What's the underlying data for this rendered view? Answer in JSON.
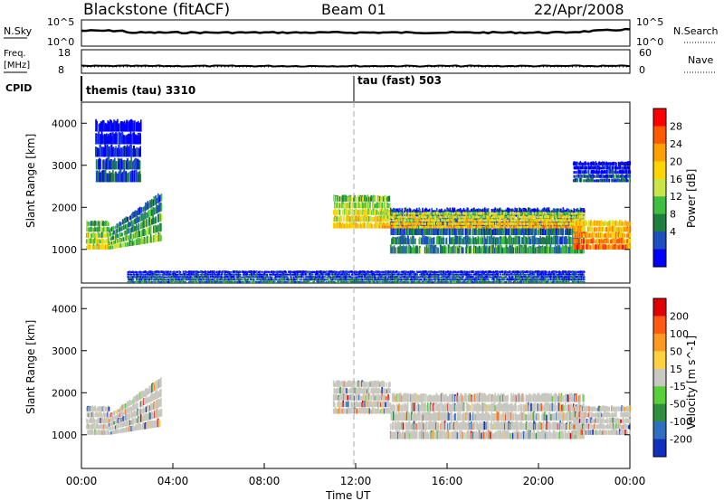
{
  "header": {
    "station": "Blackstone (fitACF)",
    "beam": "Beam 01",
    "date": "22/Apr/2008"
  },
  "top_panels": {
    "nsky_label": "N.Sky",
    "nsky_ticks": [
      "10^5",
      "10^0"
    ],
    "nsearch_label": "N.Search",
    "nsearch_ticks": [
      "10^5",
      "10^0"
    ],
    "freq_label": "Freq.",
    "freq_unit": "[MHz]",
    "freq_ticks": [
      "18",
      "8"
    ],
    "nave_label": "Nave",
    "nave_ticks": [
      "60",
      "0"
    ],
    "cpid_label": "CPID",
    "cpid_modes": [
      {
        "label": "themis (tau) 3310",
        "start_hour": 0.0
      },
      {
        "label": "tau (fast) 503",
        "start_hour": 12.0
      }
    ]
  },
  "colorbar_power": {
    "label": "Power [dB]",
    "ticks": [
      "28",
      "24",
      "20",
      "16",
      "12",
      "8",
      "4"
    ],
    "colors": [
      "#0000ff",
      "#1d4fc0",
      "#1f7f3f",
      "#3fbf3f",
      "#c8e64a",
      "#ffd400",
      "#ff9f00",
      "#ff5a00",
      "#ff0000"
    ]
  },
  "colorbar_velocity": {
    "label": "Velocity [m s^-1]",
    "ticks": [
      "200",
      "100",
      "50",
      "15",
      "-15",
      "-50",
      "-100",
      "-200"
    ],
    "colors": [
      "#1030c0",
      "#2f6fbf",
      "#2f8f3f",
      "#57d13a",
      "#c8c8c0",
      "#ffd040",
      "#ff9a20",
      "#ff5a10",
      "#e00000"
    ]
  },
  "chart_data": [
    {
      "type": "heatmap",
      "title": "Power",
      "xlabel": "Time UT",
      "ylabel": "Slant Range [km]",
      "x_ticks": [
        "00:00",
        "04:00",
        "08:00",
        "12:00",
        "16:00",
        "20:00",
        "00:00"
      ],
      "y_ticks": [
        "4000",
        "3000",
        "2000",
        "1000"
      ],
      "xlim": [
        0,
        24
      ],
      "ylim": [
        200,
        4500
      ],
      "colorbar_range": [
        0,
        32
      ],
      "regions": [
        {
          "t0": 0.2,
          "t1": 1.2,
          "r0": 1000,
          "r1": 1700,
          "level": 18
        },
        {
          "t0": 1.2,
          "t1": 3.5,
          "r0": 1000,
          "r1": 2400,
          "level": 14,
          "slope": true
        },
        {
          "t0": 0.6,
          "t1": 2.6,
          "r0": 2600,
          "r1": 4100,
          "level": 6
        },
        {
          "t0": 11.0,
          "t1": 13.5,
          "r0": 1500,
          "r1": 2300,
          "level": 20
        },
        {
          "t0": 13.5,
          "t1": 22.0,
          "r0": 900,
          "r1": 2000,
          "level": 10
        },
        {
          "t0": 13.0,
          "t1": 22.0,
          "r0": 1500,
          "r1": 1900,
          "level": 22
        },
        {
          "t0": 21.5,
          "t1": 24.0,
          "r0": 1000,
          "r1": 1700,
          "level": 26
        },
        {
          "t0": 21.5,
          "t1": 24.0,
          "r0": 2600,
          "r1": 3100,
          "level": 6
        },
        {
          "t0": 2.0,
          "t1": 22.0,
          "r0": 200,
          "r1": 500,
          "level": 8
        }
      ]
    },
    {
      "type": "heatmap",
      "title": "Velocity",
      "xlabel": "Time UT",
      "ylabel": "Slant Range [km]",
      "x_ticks": [
        "00:00",
        "04:00",
        "08:00",
        "12:00",
        "16:00",
        "20:00",
        "00:00"
      ],
      "y_ticks": [
        "4000",
        "3000",
        "2000",
        "1000"
      ],
      "xlim": [
        0,
        24
      ],
      "ylim": [
        200,
        4500
      ],
      "regions": [
        {
          "t0": 0.2,
          "t1": 1.2,
          "r0": 1000,
          "r1": 1700,
          "level": 0
        },
        {
          "t0": 1.2,
          "t1": 3.5,
          "r0": 1000,
          "r1": 2400,
          "level": 0,
          "slope": true
        },
        {
          "t0": 11.0,
          "t1": 13.5,
          "r0": 1500,
          "r1": 2300,
          "level": 0
        },
        {
          "t0": 13.5,
          "t1": 22.0,
          "r0": 900,
          "r1": 2000,
          "level": 0
        },
        {
          "t0": 21.5,
          "t1": 24.0,
          "r0": 1000,
          "r1": 1700,
          "level": 0
        }
      ]
    }
  ]
}
